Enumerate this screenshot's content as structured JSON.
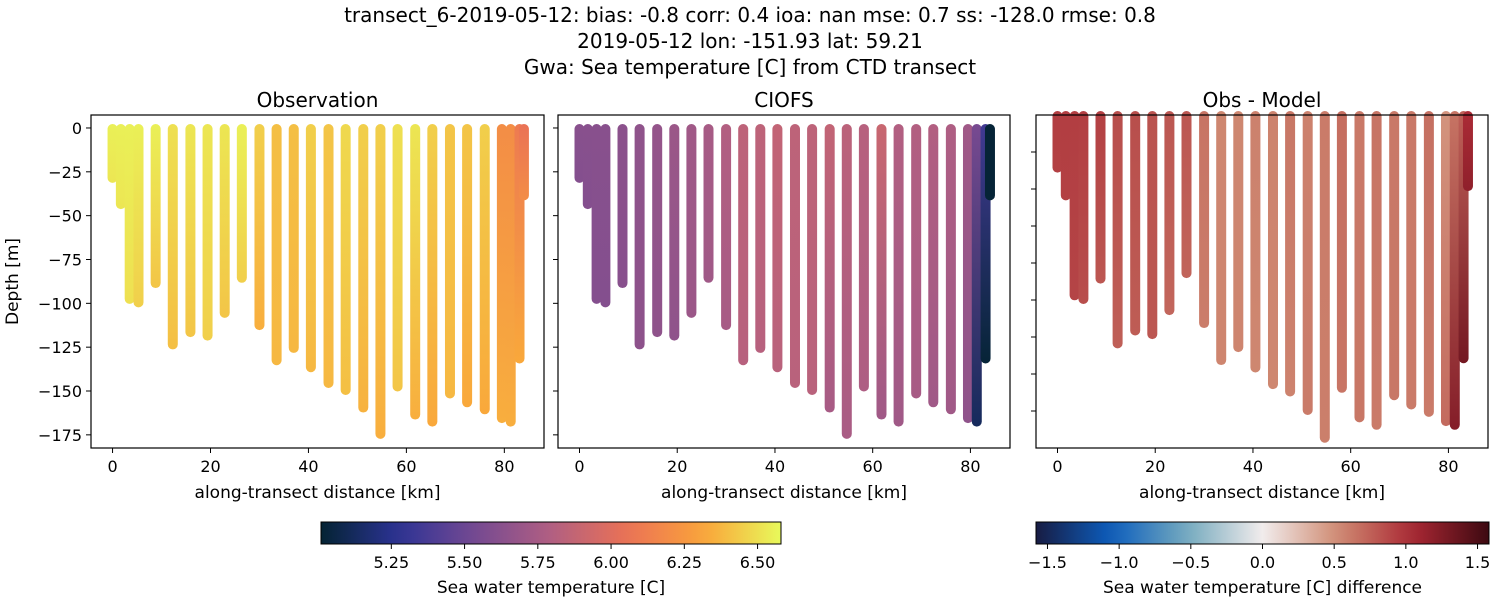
{
  "title_lines": [
    "transect_6-2019-05-12: bias: -0.8  corr: 0.4  ioa: nan  mse: 0.7  ss: -128.0  rmse: 0.8",
    "2019-05-12 lon: -151.93 lat: 59.21",
    "Gwa: Sea temperature [C] from CTD transect"
  ],
  "chart_data": [
    {
      "type": "scatter",
      "title": "Observation",
      "xlabel": "along-transect distance [km]",
      "ylabel": "Depth [m]",
      "xlim": [
        -4.4,
        88.1
      ],
      "ylim": [
        -182.5,
        7.4
      ],
      "xticks": [
        0,
        20,
        40,
        60,
        80
      ],
      "yticks": [
        0,
        -25,
        -50,
        -75,
        -100,
        -125,
        -150,
        -175
      ],
      "show_ylabels": true,
      "field": "obs",
      "cmap": "thermal"
    },
    {
      "type": "scatter",
      "title": "CIOFS",
      "xlabel": "along-transect distance [km]",
      "ylabel": "",
      "xlim": [
        -4.4,
        88.1
      ],
      "ylim": [
        -182.5,
        7.4
      ],
      "xticks": [
        0,
        20,
        40,
        60,
        80
      ],
      "yticks": [
        0,
        -25,
        -50,
        -75,
        -100,
        -125,
        -150,
        -175
      ],
      "show_ylabels": false,
      "field": "model",
      "cmap": "thermal"
    },
    {
      "type": "scatter",
      "title": "Obs - Model",
      "xlabel": "along-transect distance [km]",
      "ylabel": "",
      "xlim": [
        -4.4,
        88.1
      ],
      "ylim": [
        -180,
        0
      ],
      "xticks": [
        0,
        20,
        40,
        60,
        80
      ],
      "yticks": [
        -20,
        -40,
        -60,
        -80,
        -100,
        -120,
        -140,
        -160
      ],
      "show_ylabels": false,
      "field": "diff",
      "cmap": "balance"
    }
  ],
  "stations": [
    {
      "km": 0.0,
      "depth": -29,
      "obs": [
        6.55,
        6.52
      ],
      "model": [
        5.62,
        5.6
      ]
    },
    {
      "km": 1.7,
      "depth": -44,
      "obs": [
        6.55,
        6.52
      ],
      "model": [
        5.62,
        5.6
      ]
    },
    {
      "km": 3.5,
      "depth": -98,
      "obs": [
        6.55,
        6.5
      ],
      "model": [
        5.62,
        5.6
      ]
    },
    {
      "km": 5.3,
      "depth": -100,
      "obs": [
        6.55,
        6.45
      ],
      "model": [
        5.62,
        5.6
      ]
    },
    {
      "km": 8.8,
      "depth": -89,
      "obs": [
        6.55,
        6.42
      ],
      "model": [
        5.63,
        5.62
      ]
    },
    {
      "km": 12.3,
      "depth": -124,
      "obs": [
        6.5,
        6.4
      ],
      "model": [
        5.65,
        5.64
      ]
    },
    {
      "km": 15.9,
      "depth": -117,
      "obs": [
        6.52,
        6.42
      ],
      "model": [
        5.67,
        5.65
      ]
    },
    {
      "km": 19.4,
      "depth": -119,
      "obs": [
        6.52,
        6.45
      ],
      "model": [
        5.7,
        5.65
      ]
    },
    {
      "km": 22.9,
      "depth": -106,
      "obs": [
        6.52,
        6.42
      ],
      "model": [
        5.72,
        5.7
      ]
    },
    {
      "km": 26.4,
      "depth": -86,
      "obs": [
        6.55,
        6.45
      ],
      "model": [
        5.75,
        5.72
      ]
    },
    {
      "km": 30.0,
      "depth": -113,
      "obs": [
        6.45,
        6.35
      ],
      "model": [
        5.8,
        5.75
      ]
    },
    {
      "km": 33.5,
      "depth": -133,
      "obs": [
        6.4,
        6.38
      ],
      "model": [
        5.85,
        5.82
      ]
    },
    {
      "km": 37.0,
      "depth": -126,
      "obs": [
        6.4,
        6.38
      ],
      "model": [
        5.85,
        5.82
      ]
    },
    {
      "km": 40.5,
      "depth": -137,
      "obs": [
        6.45,
        6.38
      ],
      "model": [
        5.87,
        5.83
      ]
    },
    {
      "km": 44.1,
      "depth": -146,
      "obs": [
        6.42,
        6.38
      ],
      "model": [
        5.85,
        5.83
      ]
    },
    {
      "km": 47.6,
      "depth": -150,
      "obs": [
        6.48,
        6.4
      ],
      "model": [
        5.85,
        5.83
      ]
    },
    {
      "km": 51.2,
      "depth": -160,
      "obs": [
        6.45,
        6.36
      ],
      "model": [
        5.87,
        5.75
      ]
    },
    {
      "km": 54.7,
      "depth": -175,
      "obs": [
        6.45,
        6.35
      ],
      "model": [
        5.84,
        5.76
      ]
    },
    {
      "km": 58.2,
      "depth": -148,
      "obs": [
        6.5,
        6.42
      ],
      "model": [
        5.82,
        5.78
      ]
    },
    {
      "km": 61.8,
      "depth": -164,
      "obs": [
        6.52,
        6.35
      ],
      "model": [
        5.9,
        5.72
      ]
    },
    {
      "km": 65.3,
      "depth": -168,
      "obs": [
        6.45,
        6.33
      ],
      "model": [
        5.8,
        5.72
      ]
    },
    {
      "km": 68.9,
      "depth": -152,
      "obs": [
        6.42,
        6.38
      ],
      "model": [
        5.8,
        5.75
      ]
    },
    {
      "km": 72.4,
      "depth": -157,
      "obs": [
        6.42,
        6.33
      ],
      "model": [
        5.8,
        5.72
      ]
    },
    {
      "km": 76.0,
      "depth": -161,
      "obs": [
        6.45,
        6.33
      ],
      "model": [
        5.78,
        5.72
      ]
    },
    {
      "km": 79.5,
      "depth": -166,
      "obs": [
        6.2,
        6.35
      ],
      "model": [
        5.72,
        5.65
      ]
    },
    {
      "km": 81.3,
      "depth": -168,
      "obs": [
        6.2,
        6.35
      ],
      "model": [
        5.55,
        5.12
      ]
    },
    {
      "km": 83.1,
      "depth": -132,
      "obs": [
        6.1,
        6.33
      ],
      "model": [
        5.35,
        5.02
      ]
    },
    {
      "km": 84.0,
      "depth": -39,
      "obs": [
        6.05,
        6.2
      ],
      "model": [
        5.02,
        5.02
      ]
    }
  ],
  "colorbars": [
    {
      "label": "Sea water temperature [C]",
      "cmap": "thermal",
      "range": [
        5.01,
        6.58
      ],
      "ticks": [
        "5.25",
        "5.50",
        "5.75",
        "6.00",
        "6.25",
        "6.50"
      ]
    },
    {
      "label": "Sea water temperature [C] difference",
      "cmap": "balance",
      "range": [
        -1.58,
        1.58
      ],
      "ticks": [
        "−1.5",
        "−1.0",
        "−0.5",
        "0.0",
        "0.5",
        "1.0",
        "1.5"
      ]
    }
  ],
  "colormaps": {
    "thermal": [
      "#042333",
      "#2c3395",
      "#744992",
      "#b15f82",
      "#eb7255",
      "#faa43a",
      "#e8fa5b"
    ],
    "balance": [
      "#181c43",
      "#0c5ebe",
      "#75aabe",
      "#f1ecec",
      "#d08b73",
      "#a92733",
      "#3c0911"
    ]
  }
}
